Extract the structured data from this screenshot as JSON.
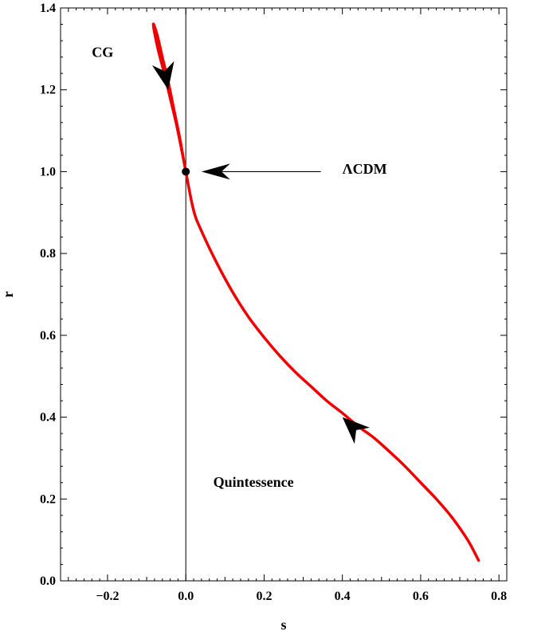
{
  "chart_data": {
    "type": "line",
    "title": "",
    "xlabel": "s",
    "ylabel": "r",
    "xlim": [
      -0.32,
      0.82
    ],
    "ylim": [
      0.0,
      1.4
    ],
    "x_ticks": [
      -0.2,
      0.0,
      0.2,
      0.4,
      0.6,
      0.8
    ],
    "x_tick_labels": [
      "−0.2",
      "0.0",
      "0.2",
      "0.4",
      "0.6",
      "0.8"
    ],
    "y_ticks": [
      0.0,
      0.2,
      0.4,
      0.6,
      0.8,
      1.0,
      1.2,
      1.4
    ],
    "y_tick_labels": [
      "0.0",
      "0.2",
      "0.4",
      "0.6",
      "0.8",
      "1.0",
      "1.2",
      "1.4"
    ],
    "grid": false,
    "series": [
      {
        "color": "#ee0000",
        "x": [
          0.748,
          0.72,
          0.68,
          0.64,
          0.6,
          0.56,
          0.52,
          0.48,
          0.44,
          0.4,
          0.36,
          0.32,
          0.28,
          0.24,
          0.2,
          0.16,
          0.12,
          0.08,
          0.04,
          0.02,
          0.0,
          -0.015,
          -0.03,
          -0.045,
          -0.06,
          -0.072,
          -0.08,
          -0.083,
          -0.08,
          -0.07,
          -0.055,
          -0.04,
          -0.025,
          -0.01,
          0.0
        ],
        "y": [
          0.05,
          0.1,
          0.155,
          0.2,
          0.24,
          0.28,
          0.316,
          0.35,
          0.378,
          0.41,
          0.44,
          0.475,
          0.51,
          0.55,
          0.595,
          0.645,
          0.705,
          0.775,
          0.855,
          0.905,
          1.0,
          1.08,
          1.15,
          1.22,
          1.28,
          1.33,
          1.355,
          1.36,
          1.34,
          1.295,
          1.24,
          1.18,
          1.12,
          1.05,
          1.0
        ]
      }
    ],
    "vertical_line_x": 0,
    "point": {
      "s": 0,
      "r": 1.0
    },
    "direction_arrows": [
      {
        "s": 0.43,
        "r": 0.373,
        "toward": [
          0.4,
          0.4
        ]
      },
      {
        "s": -0.05,
        "r": 1.225,
        "toward": [
          -0.045,
          1.2
        ]
      }
    ],
    "annotations": [
      {
        "text": "CG",
        "s": -0.24,
        "r": 1.28
      },
      {
        "text": "ΛCDM",
        "s": 0.4,
        "r": 0.995
      },
      {
        "text": "Quintessence",
        "s": 0.07,
        "r": 0.23
      }
    ],
    "label_arrow": {
      "from": [
        0.345,
        1.0
      ],
      "to": [
        0.04,
        1.0
      ]
    }
  }
}
